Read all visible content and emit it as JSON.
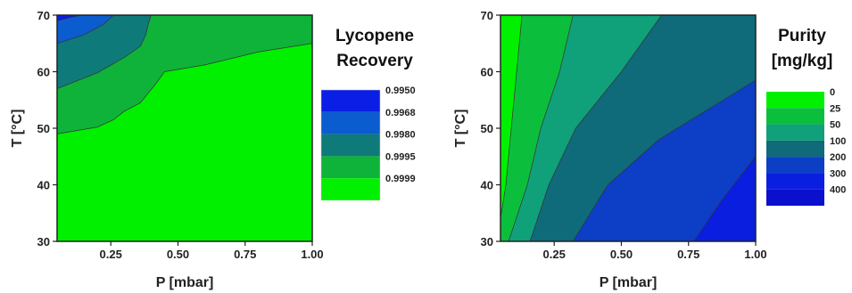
{
  "caption": "",
  "chart_data": [
    {
      "type": "heatmap",
      "title": "Lycopene Recovery",
      "title_lines": [
        "Lycopene",
        "Recovery"
      ],
      "xlabel": "P [mbar]",
      "ylabel": "T [°C]",
      "xlim": [
        0.05,
        1.0
      ],
      "ylim": [
        30,
        70
      ],
      "x_ticks": [
        "0.25",
        "0.50",
        "0.75",
        "1.00"
      ],
      "x_tick_values": [
        0.25,
        0.5,
        0.75,
        1.0
      ],
      "y_ticks": [
        "30",
        "40",
        "50",
        "60",
        "70"
      ],
      "y_tick_values": [
        30,
        40,
        50,
        60,
        70
      ],
      "legend_position": "right",
      "levels": [
        "0.9950",
        "0.9968",
        "0.9980",
        "0.9995",
        "0.9999"
      ],
      "level_colors": [
        "#0a1ee6",
        "#0b5ccf",
        "#0f7a7a",
        "#0fb33a",
        "#00f000"
      ],
      "regions": [
        {
          "level": "0.9999",
          "boundary_T": [
            [
              0.05,
              49
            ],
            [
              0.15,
              49.8
            ],
            [
              0.2,
              50.2
            ],
            [
              0.26,
              51.5
            ],
            [
              0.3,
              53
            ],
            [
              0.36,
              54.5
            ],
            [
              0.42,
              58
            ],
            [
              0.45,
              60
            ],
            [
              0.6,
              61.2
            ],
            [
              0.8,
              63.5
            ],
            [
              1.0,
              65
            ]
          ]
        },
        {
          "level": "0.9995",
          "boundary_T": [
            [
              0.05,
              57
            ],
            [
              0.2,
              59.8
            ],
            [
              0.3,
              62.5
            ],
            [
              0.36,
              64.5
            ],
            [
              0.38,
              66.5
            ],
            [
              0.39,
              68.5
            ],
            [
              0.4,
              70
            ]
          ]
        },
        {
          "level": "0.9980",
          "boundary_T": [
            [
              0.05,
              65
            ],
            [
              0.15,
              66.5
            ],
            [
              0.22,
              68.3
            ],
            [
              0.26,
              70
            ]
          ]
        },
        {
          "level": "0.9968",
          "boundary_T": [
            [
              0.05,
              69
            ],
            [
              0.1,
              69.6
            ],
            [
              0.14,
              70
            ]
          ]
        },
        {
          "level": "0.9950",
          "boundary_T": [
            [
              0.05,
              70
            ]
          ]
        }
      ]
    },
    {
      "type": "heatmap",
      "title": "Purity [mg/kg]",
      "title_lines": [
        "Purity",
        "[mg/kg]"
      ],
      "xlabel": "P [mbar]",
      "ylabel": "T [°C]",
      "xlim": [
        0.05,
        1.0
      ],
      "ylim": [
        30,
        70
      ],
      "x_ticks": [
        "0.25",
        "0.50",
        "0.75",
        "1.00"
      ],
      "x_tick_values": [
        0.25,
        0.5,
        0.75,
        1.0
      ],
      "y_ticks": [
        "30",
        "40",
        "50",
        "60",
        "70"
      ],
      "y_tick_values": [
        30,
        40,
        50,
        60,
        70
      ],
      "legend_position": "right",
      "levels": [
        "0",
        "25",
        "50",
        "100",
        "200",
        "300",
        "400"
      ],
      "level_colors": [
        "#00f000",
        "#0bbf3c",
        "#10a07a",
        "#0f6a7a",
        "#0c3ec6",
        "#0a1ee0",
        "#0a10cc"
      ],
      "contours": [
        {
          "level": "25",
          "points": [
            [
              0.05,
              34
            ],
            [
              0.07,
              40
            ],
            [
              0.09,
              50
            ],
            [
              0.11,
              60
            ],
            [
              0.13,
              70
            ]
          ]
        },
        {
          "level": "50",
          "points": [
            [
              0.08,
              30
            ],
            [
              0.15,
              40
            ],
            [
              0.2,
              50
            ],
            [
              0.27,
              60
            ],
            [
              0.32,
              70
            ]
          ]
        },
        {
          "level": "100",
          "points": [
            [
              0.16,
              30
            ],
            [
              0.23,
              40
            ],
            [
              0.33,
              50
            ],
            [
              0.5,
              60
            ],
            [
              0.65,
              70
            ]
          ]
        },
        {
          "level": "200",
          "points": [
            [
              0.32,
              30
            ],
            [
              0.45,
              40
            ],
            [
              0.64,
              48
            ],
            [
              0.88,
              55
            ],
            [
              1.0,
              58.5
            ]
          ]
        },
        {
          "level": "300",
          "points": [
            [
              0.77,
              30
            ],
            [
              0.87,
              37
            ],
            [
              0.95,
              42
            ],
            [
              1.0,
              45
            ]
          ]
        }
      ]
    }
  ]
}
